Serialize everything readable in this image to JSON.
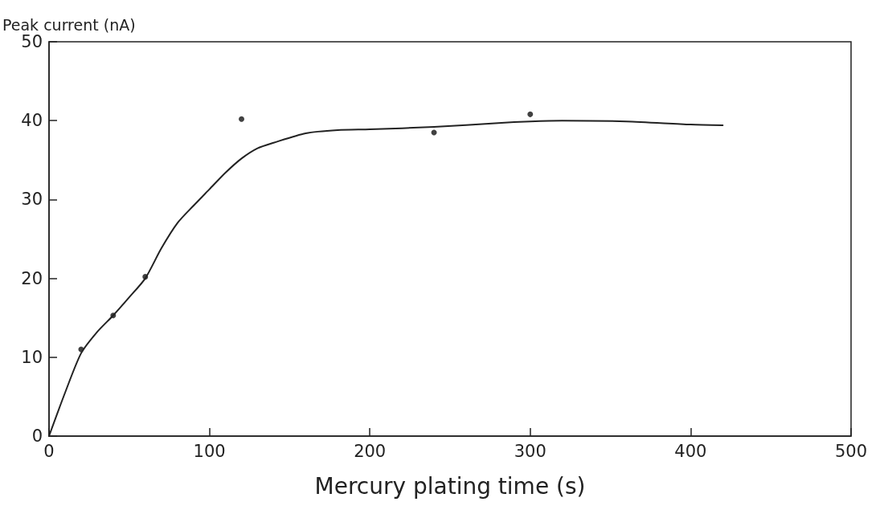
{
  "chart_data": {
    "type": "scatter",
    "xlabel": "Mercury plating time (s)",
    "ylabel": "Peak current (nA)",
    "xlim": [
      0,
      500
    ],
    "xticks": [
      0,
      100,
      200,
      300,
      400,
      500
    ],
    "ylim": [
      0,
      50
    ],
    "yticks": [
      0,
      10,
      20,
      30,
      40,
      50
    ],
    "grid": false,
    "series": [
      {
        "marker": "circle",
        "color": "#111111",
        "x": [
          20,
          40,
          60,
          120,
          240,
          300
        ],
        "values": [
          11.0,
          15.3,
          20.2,
          40.2,
          38.5,
          40.8
        ]
      },
      {
        "type": "line",
        "marker": "none",
        "color": "#222222",
        "line_style": "solid",
        "x": [
          0,
          10,
          20,
          30,
          40,
          50,
          60,
          70,
          80,
          90,
          100,
          110,
          120,
          130,
          140,
          160,
          180,
          200,
          240,
          280,
          300,
          320,
          360,
          400,
          420
        ],
        "values": [
          0,
          5.5,
          10.5,
          13.2,
          15.3,
          17.6,
          20,
          23.8,
          27.0,
          29.2,
          31.3,
          33.4,
          35.2,
          36.5,
          37.2,
          38.4,
          38.8,
          38.9,
          39.2,
          39.7,
          39.9,
          40,
          39.9,
          39.5,
          39.4
        ]
      }
    ]
  }
}
